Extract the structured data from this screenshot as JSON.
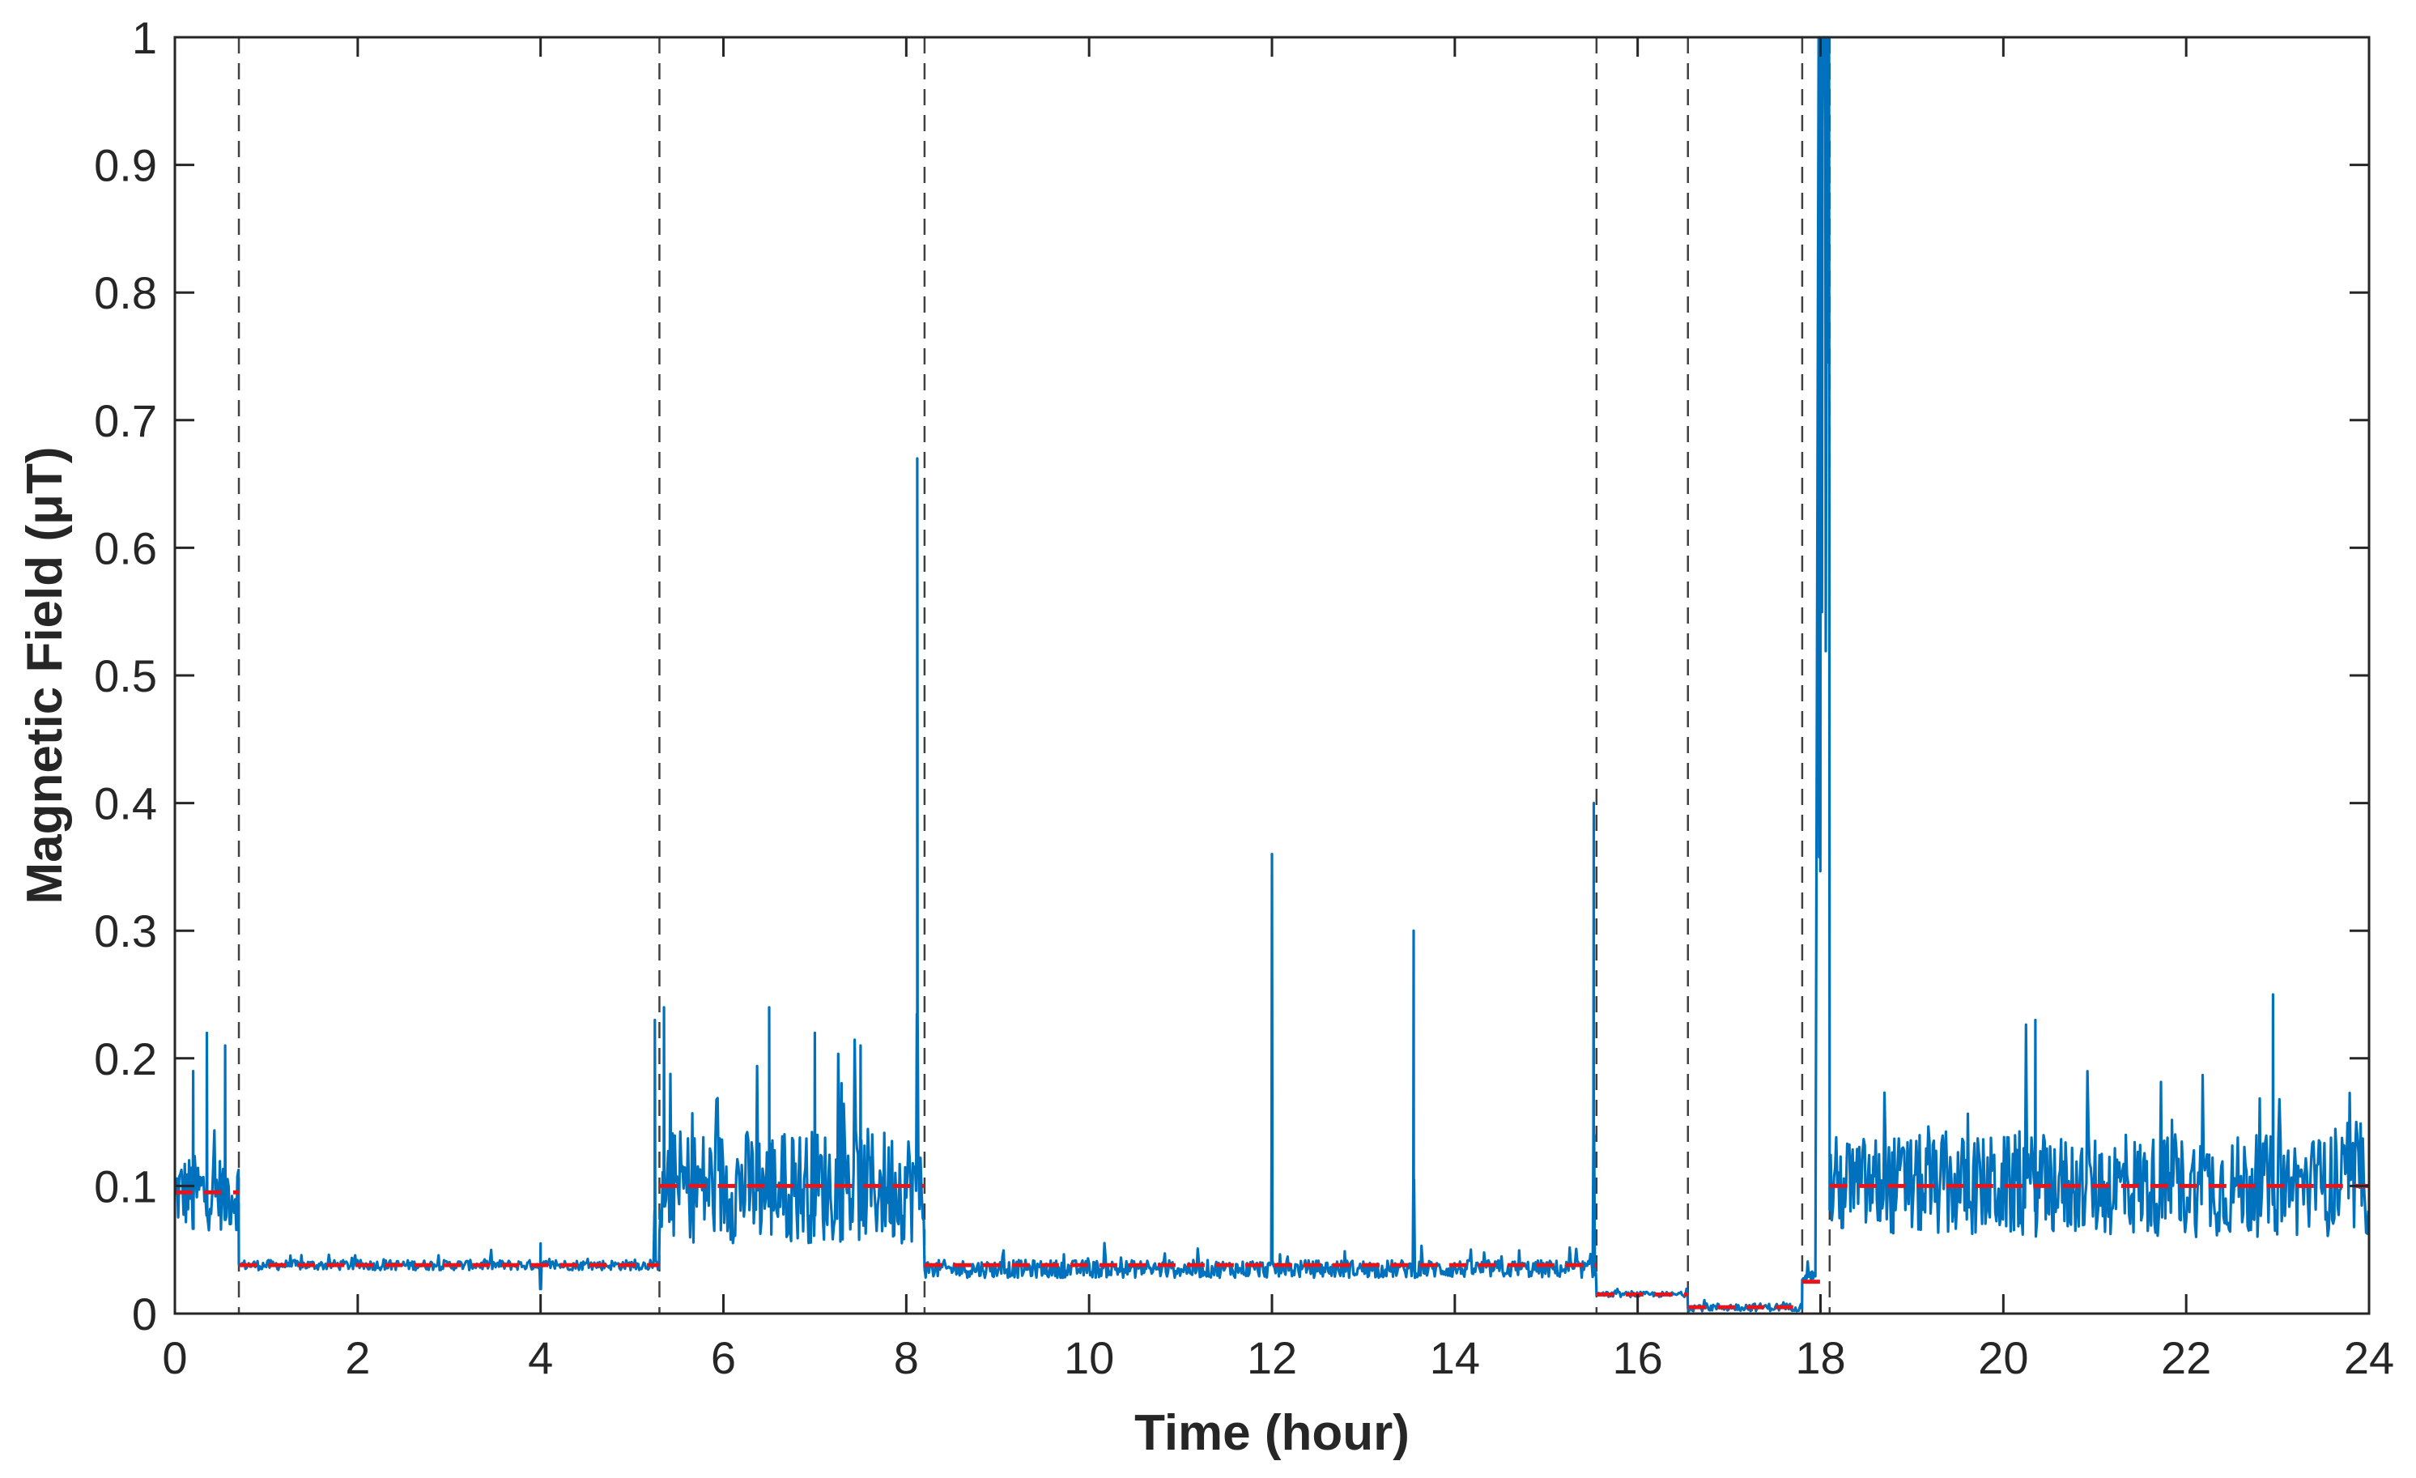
{
  "chart_data": {
    "type": "line",
    "title": "",
    "xlabel": "Time (hour)",
    "ylabel": "Magnetic Field (μT)",
    "xlim": [
      0,
      24
    ],
    "ylim": [
      0,
      1
    ],
    "xticks": [
      "0",
      "2",
      "4",
      "6",
      "8",
      "10",
      "12",
      "14",
      "16",
      "18",
      "20",
      "22",
      "24"
    ],
    "yticks": [
      "0",
      "0.1",
      "0.2",
      "0.3",
      "0.4",
      "0.5",
      "0.6",
      "0.7",
      "0.8",
      "0.9",
      "1"
    ],
    "grid": false,
    "colors": {
      "series": "#0072BD",
      "mean": "#e8141b",
      "boundary": "#404040",
      "axes": "#262626"
    },
    "change_points": [
      0.7,
      5.3,
      8.2,
      15.55,
      16.55,
      17.8,
      18.1
    ],
    "segment_means": [
      {
        "x": [
          0,
          0.7
        ],
        "y": 0.095
      },
      {
        "x": [
          0.7,
          5.3
        ],
        "y": 0.038
      },
      {
        "x": [
          5.3,
          8.2
        ],
        "y": 0.1
      },
      {
        "x": [
          8.2,
          15.55
        ],
        "y": 0.038
      },
      {
        "x": [
          15.55,
          16.55
        ],
        "y": 0.015
      },
      {
        "x": [
          16.55,
          17.8
        ],
        "y": 0.005
      },
      {
        "x": [
          17.8,
          18.1
        ],
        "y": 0.025
      },
      {
        "x": [
          18.1,
          24
        ],
        "y": 0.1
      }
    ],
    "segments": [
      {
        "x": [
          0,
          0.7
        ],
        "base": 0.095,
        "noise": 0.03
      },
      {
        "x": [
          0.7,
          5.3
        ],
        "base": 0.038,
        "noise": 0.004
      },
      {
        "x": [
          5.3,
          8.2
        ],
        "base": 0.1,
        "noise": 0.045
      },
      {
        "x": [
          8.2,
          15.55
        ],
        "base": 0.035,
        "noise": 0.007
      },
      {
        "x": [
          15.55,
          16.55
        ],
        "base": 0.015,
        "noise": 0.002
      },
      {
        "x": [
          16.55,
          17.8
        ],
        "base": 0.005,
        "noise": 0.003
      },
      {
        "x": [
          17.8,
          17.95
        ],
        "base": 0.03,
        "noise": 0.004
      },
      {
        "x": [
          18.1,
          24
        ],
        "base": 0.1,
        "noise": 0.04
      }
    ],
    "spikes": [
      {
        "x": 0.2,
        "y": 0.19
      },
      {
        "x": 0.35,
        "y": 0.22
      },
      {
        "x": 0.55,
        "y": 0.21
      },
      {
        "x": 4.0,
        "y": 0.055
      },
      {
        "x": 5.25,
        "y": 0.23
      },
      {
        "x": 5.35,
        "y": 0.24
      },
      {
        "x": 6.5,
        "y": 0.24
      },
      {
        "x": 7.0,
        "y": 0.22
      },
      {
        "x": 7.5,
        "y": 0.21
      },
      {
        "x": 8.12,
        "y": 0.67
      },
      {
        "x": 12.0,
        "y": 0.36
      },
      {
        "x": 13.55,
        "y": 0.3
      },
      {
        "x": 15.52,
        "y": 0.4
      },
      {
        "x": 22.95,
        "y": 0.25
      },
      {
        "x": 20.35,
        "y": 0.23
      }
    ],
    "burst": {
      "x": [
        17.98,
        18.1
      ],
      "peak": 1.0,
      "level": 0.63
    }
  }
}
